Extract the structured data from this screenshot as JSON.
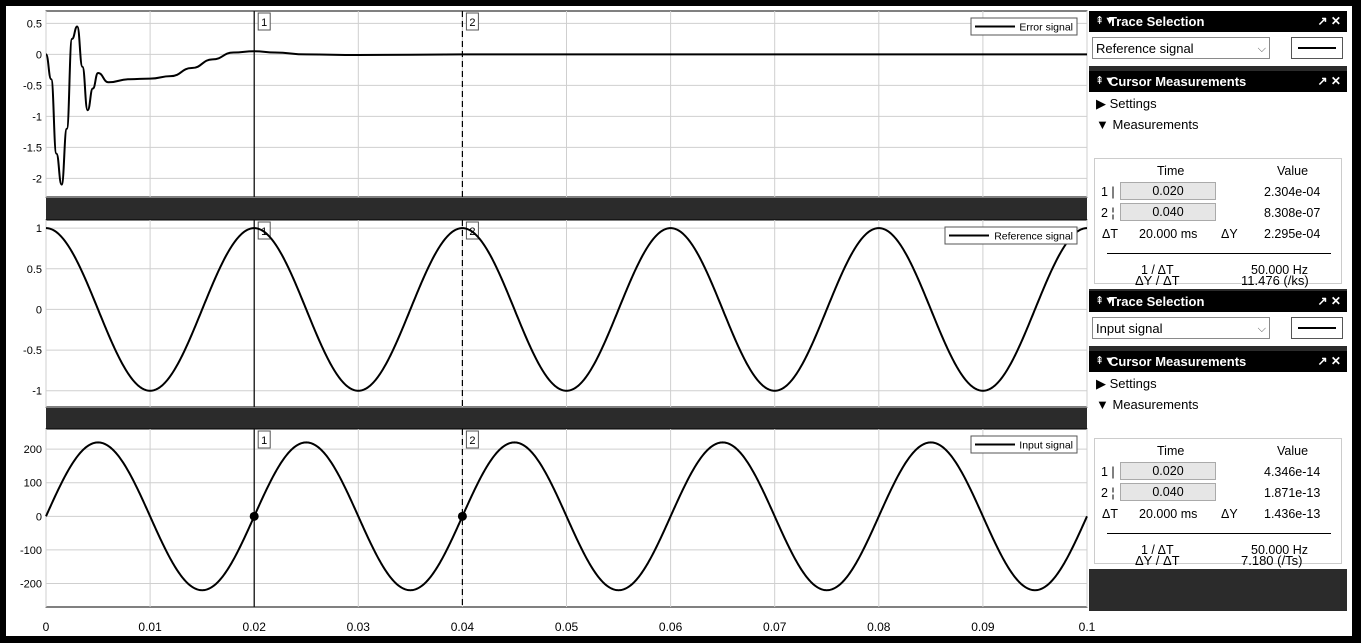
{
  "chart_data": [
    {
      "type": "line",
      "series": [
        {
          "name": "Error signal",
          "description": "damped oscillation settling to 0",
          "x": [
            0,
            0.0005,
            0.001,
            0.0015,
            0.002,
            0.0025,
            0.003,
            0.0035,
            0.004,
            0.0045,
            0.005,
            0.006,
            0.008,
            0.01,
            0.012,
            0.014,
            0.016,
            0.018,
            0.02,
            0.022,
            0.025,
            0.03,
            0.04,
            0.1
          ],
          "y": [
            0,
            -0.4,
            -1.6,
            -2.1,
            -1.2,
            0.25,
            0.45,
            -0.2,
            -0.9,
            -0.55,
            -0.3,
            -0.45,
            -0.4,
            -0.39,
            -0.35,
            -0.22,
            -0.08,
            0.03,
            0.05,
            0.03,
            0.0,
            -0.01,
            0.0,
            0.0
          ]
        }
      ],
      "ylim": [
        -2.3,
        0.7
      ],
      "yticks": [
        0.5,
        0,
        -0.5,
        -1,
        -1.5,
        -2
      ],
      "ytick_labels": [
        "0.5",
        "0",
        "-0.5",
        "-1",
        "-1.5",
        "-2"
      ],
      "legend": "Error signal"
    },
    {
      "type": "line",
      "series": [
        {
          "name": "Reference signal",
          "function": "cos(2*pi*50*t)"
        }
      ],
      "ylim": [
        -1.2,
        1.1
      ],
      "yticks": [
        1,
        0.5,
        0,
        -0.5,
        -1
      ],
      "ytick_labels": [
        "1",
        "0.5",
        "0",
        "-0.5",
        "-1"
      ],
      "legend": "Reference signal"
    },
    {
      "type": "line",
      "series": [
        {
          "name": "Input signal",
          "function": "220*sin(2*pi*50*t)"
        }
      ],
      "ylim": [
        -270,
        260
      ],
      "yticks": [
        200,
        100,
        0,
        -100,
        -200
      ],
      "ytick_labels": [
        "200",
        "100",
        "0",
        "-100",
        "-200"
      ],
      "legend": "Input signal",
      "markers": [
        {
          "x": 0.02,
          "y": 0
        },
        {
          "x": 0.04,
          "y": 0
        }
      ]
    }
  ],
  "x_axis": {
    "xlim": [
      0,
      0.1
    ],
    "ticks": [
      0,
      0.01,
      0.02,
      0.03,
      0.04,
      0.05,
      0.06,
      0.07,
      0.08,
      0.09,
      0.1
    ],
    "tick_labels": [
      "0",
      "0.01",
      "0.02",
      "0.03",
      "0.04",
      "0.05",
      "0.06",
      "0.07",
      "0.08",
      "0.09",
      "0.1"
    ]
  },
  "cursors": [
    {
      "label": "1",
      "x": 0.02,
      "style": "solid"
    },
    {
      "label": "2",
      "x": 0.04,
      "style": "dashed"
    }
  ],
  "panels": [
    {
      "trace_title": "Trace Selection",
      "trace_value": "Reference signal",
      "meas_title": "Cursor Measurements",
      "settings": "Settings",
      "measurements": "Measurements",
      "time_header": "Time",
      "value_header": "Value",
      "row1_label": "1",
      "row1_time": "0.020",
      "row1_value": "2.304e-04",
      "row2_label": "2",
      "row2_time": "0.040",
      "row2_value": "8.308e-07",
      "dt_label": "ΔT",
      "dt_value": "20.000 ms",
      "dy_label": "ΔY",
      "dy_value": "2.295e-04",
      "inv_label": "1 / ΔT",
      "inv_value": "50.000 Hz",
      "slope_label": "ΔY / ΔT",
      "slope_value": "11.476 (/ks)"
    },
    {
      "trace_title": "Trace Selection",
      "trace_value": "Input signal",
      "meas_title": "Cursor Measurements",
      "settings": "Settings",
      "measurements": "Measurements",
      "time_header": "Time",
      "value_header": "Value",
      "row1_label": "1",
      "row1_time": "0.020",
      "row1_value": "4.346e-14",
      "row2_label": "2",
      "row2_time": "0.040",
      "row2_value": "1.871e-13",
      "dt_label": "ΔT",
      "dt_value": "20.000 ms",
      "dy_label": "ΔY",
      "dy_value": "1.436e-13",
      "inv_label": "1 / ΔT",
      "inv_value": "50.000 Hz",
      "slope_label": "ΔY / ΔT",
      "slope_value": "7.180 (/Ts)"
    }
  ]
}
